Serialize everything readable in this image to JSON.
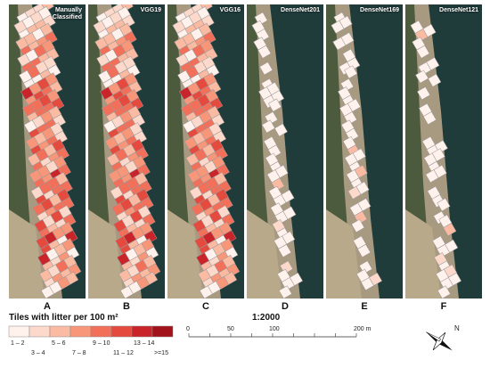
{
  "panels": [
    {
      "title": "Manually Classified",
      "letter": "A"
    },
    {
      "title": "VGG19",
      "letter": "B"
    },
    {
      "title": "VGG16",
      "letter": "C"
    },
    {
      "title": "DenseNet201",
      "letter": "D"
    },
    {
      "title": "DenseNet169",
      "letter": "E"
    },
    {
      "title": "DenseNet121",
      "letter": "F"
    }
  ],
  "legend": {
    "title": "Tiles with litter per 100 m²",
    "classes": [
      {
        "label": "1 – 2",
        "color": "#fff1ec"
      },
      {
        "label": "3 – 4",
        "color": "#fdd9cb"
      },
      {
        "label": "5 – 6",
        "color": "#fbbba3"
      },
      {
        "label": "7 – 8",
        "color": "#f8967a"
      },
      {
        "label": "9 – 10",
        "color": "#f2705a"
      },
      {
        "label": "11 – 12",
        "color": "#e44a3d"
      },
      {
        "label": "13 – 14",
        "color": "#c8242a"
      },
      {
        "label": ">=15",
        "color": "#a2121b"
      }
    ]
  },
  "scale": {
    "ratio": "1:2000",
    "ticks": [
      "0",
      "50",
      "100",
      "200 m"
    ]
  },
  "north": "N"
}
